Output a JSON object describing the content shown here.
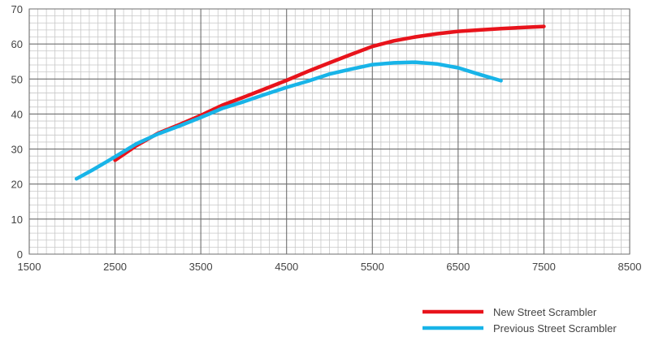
{
  "chart_data": {
    "type": "line",
    "title": "",
    "xlabel": "",
    "ylabel": "",
    "xlim": [
      1500,
      8500
    ],
    "ylim": [
      0,
      70
    ],
    "x_ticks": [
      1500,
      2500,
      3500,
      4500,
      5500,
      6500,
      7500,
      8500
    ],
    "y_ticks": [
      0,
      10,
      20,
      30,
      40,
      50,
      60,
      70
    ],
    "grid": true,
    "legend_position": "bottom-right",
    "series": [
      {
        "name": "New Street Scrambler",
        "color": "#e8131b",
        "x": [
          2500,
          2750,
          3000,
          3250,
          3500,
          3750,
          4000,
          4250,
          4500,
          4750,
          5000,
          5250,
          5500,
          5750,
          6000,
          6250,
          6500,
          6750,
          7000,
          7250,
          7500
        ],
        "y": [
          26.8,
          31.0,
          34.5,
          37.0,
          39.6,
          42.5,
          44.8,
          47.2,
          49.6,
          52.2,
          54.6,
          57.0,
          59.3,
          60.9,
          62.0,
          62.9,
          63.6,
          64.0,
          64.4,
          64.7,
          65.0
        ]
      },
      {
        "name": "Previous Street Scrambler",
        "color": "#18b4e8",
        "x": [
          2050,
          2250,
          2500,
          2750,
          3000,
          3250,
          3500,
          3750,
          4000,
          4250,
          4500,
          4750,
          5000,
          5250,
          5500,
          5750,
          6000,
          6250,
          6500,
          6750,
          7000
        ],
        "y": [
          21.5,
          24.2,
          27.8,
          31.5,
          34.3,
          36.6,
          39.0,
          41.6,
          43.5,
          45.6,
          47.6,
          49.4,
          51.4,
          52.8,
          54.1,
          54.6,
          54.8,
          54.3,
          53.2,
          51.3,
          49.5
        ]
      }
    ]
  }
}
